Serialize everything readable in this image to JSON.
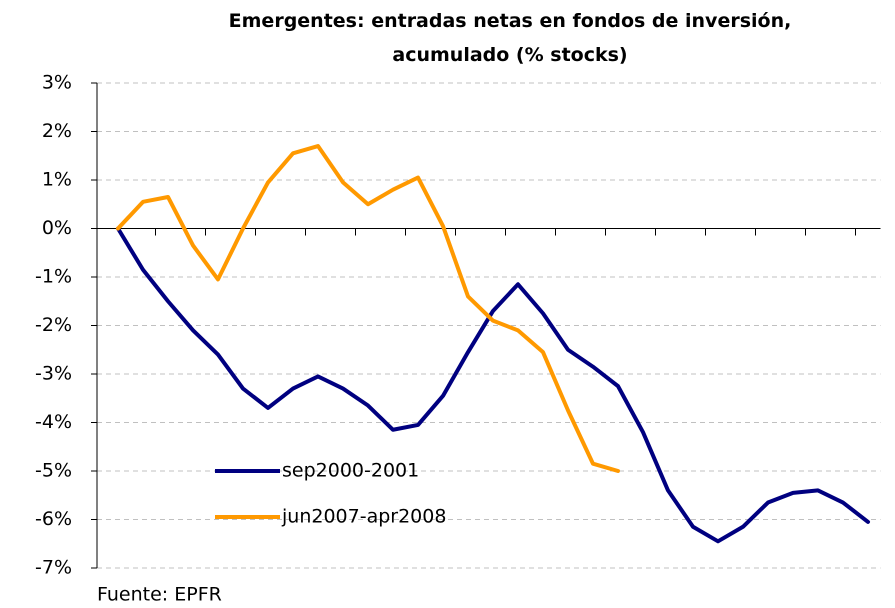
{
  "chart_data": {
    "type": "line",
    "title": "Emergentes: entradas netas en fondos de inversión, acumulado (% stocks)",
    "source": "Fuente: EPFR",
    "categories": [
      null,
      null,
      null,
      null,
      null,
      null,
      null,
      null,
      null,
      null,
      null,
      null,
      null,
      null,
      null,
      null,
      null,
      null,
      null,
      null,
      null,
      null,
      null,
      null,
      null,
      null,
      null,
      null,
      null,
      null,
      null
    ],
    "series": [
      {
        "name": "sep2000-2001",
        "color": "#000080",
        "values": [
          0,
          -0.85,
          -1.5,
          -2.1,
          -2.6,
          -3.3,
          -3.7,
          -3.3,
          -3.05,
          -3.3,
          -3.65,
          -4.15,
          -4.05,
          -3.45,
          -2.55,
          -1.7,
          -1.15,
          -1.75,
          -2.5,
          -2.85,
          -3.25,
          -4.2,
          -5.4,
          -6.15,
          -6.45,
          -6.15,
          -5.65,
          -5.45,
          -5.4,
          -5.65,
          -6.05
        ]
      },
      {
        "name": "jun2007-apr2008",
        "color": "#ff9900",
        "values": [
          0,
          0.55,
          0.65,
          -0.35,
          -1.05,
          0,
          0.95,
          1.55,
          1.7,
          0.95,
          0.5,
          0.8,
          1.05,
          0.05,
          -1.4,
          -1.9,
          -2.1,
          -2.55,
          -3.75,
          -4.85,
          -5.0,
          null,
          null,
          null,
          null,
          null,
          null,
          null,
          null,
          null,
          null
        ]
      }
    ],
    "ylim": [
      -7,
      3
    ],
    "yticks": [
      {
        "value": -7,
        "label": "-7%"
      },
      {
        "value": -6,
        "label": "-6%"
      },
      {
        "value": -5,
        "label": "-5%"
      },
      {
        "value": -4,
        "label": "-4%"
      },
      {
        "value": -3,
        "label": "-3%"
      },
      {
        "value": -2,
        "label": "-2%"
      },
      {
        "value": -1,
        "label": "-1%"
      },
      {
        "value": 0,
        "label": "0%"
      },
      {
        "value": 1,
        "label": "1%"
      },
      {
        "value": 2,
        "label": "2%"
      },
      {
        "value": 3,
        "label": "3%"
      }
    ],
    "grid": true,
    "legend": "lower-center"
  }
}
